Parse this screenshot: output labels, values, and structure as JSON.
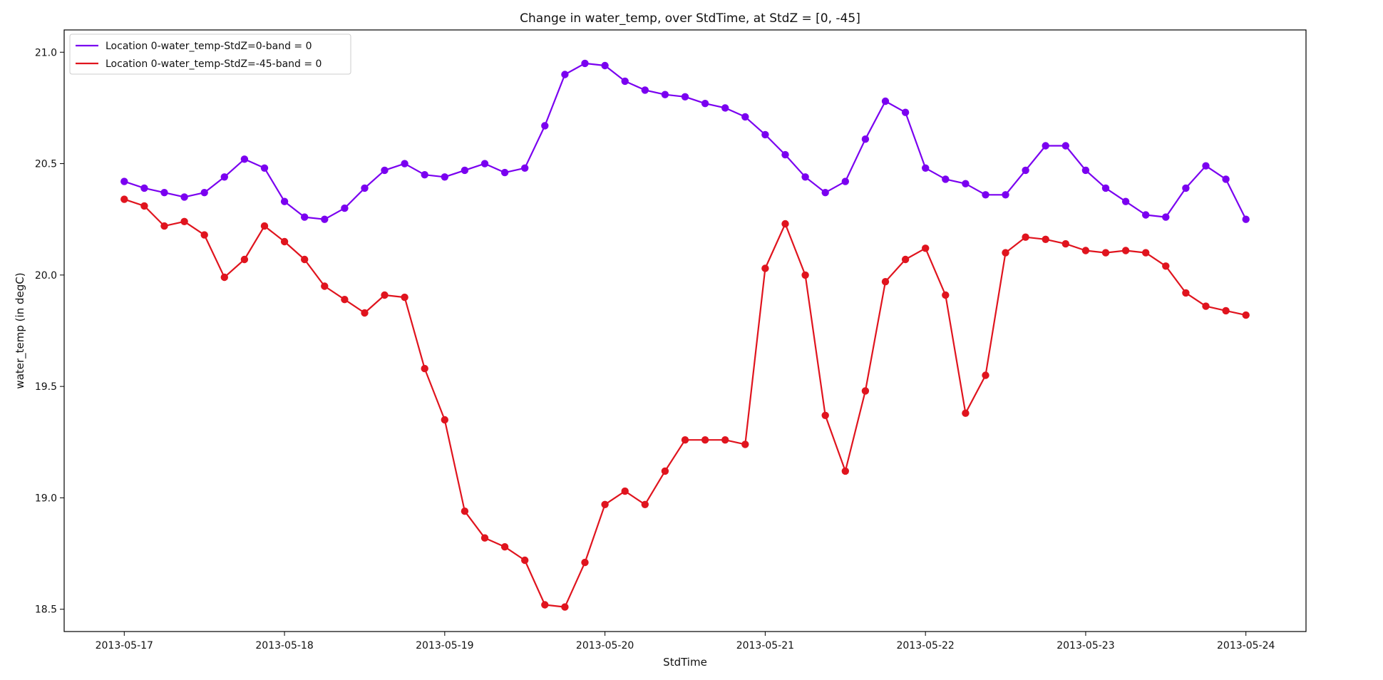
{
  "chart_data": {
    "type": "line",
    "title": "Change in water_temp, over StdTime, at StdZ =  [0, -45]",
    "xlabel": "StdTime",
    "ylabel": "water_temp (in degC)",
    "x_tick_labels": [
      "2013-05-17",
      "2013-05-18",
      "2013-05-19",
      "2013-05-20",
      "2013-05-21",
      "2013-05-22",
      "2013-05-23",
      "2013-05-24"
    ],
    "y_tick_labels": [
      "18.5",
      "19.0",
      "19.5",
      "20.0",
      "20.5",
      "21.0"
    ],
    "y_ticks": [
      18.5,
      19.0,
      19.5,
      20.0,
      20.5,
      21.0
    ],
    "xlim": [
      "2013-05-16 15:00",
      "2013-05-24 09:00"
    ],
    "ylim": [
      18.4,
      21.1
    ],
    "x_step_hours": 3,
    "x_start": "2013-05-17 00:00",
    "grid": false,
    "legend_position": "top-left",
    "series": [
      {
        "name": "Location 0-water_temp-StdZ=0-band = 0",
        "color": "#7a00f0",
        "values": [
          20.42,
          20.39,
          20.37,
          20.35,
          20.37,
          20.44,
          20.52,
          20.48,
          20.33,
          20.26,
          20.25,
          20.3,
          20.39,
          20.47,
          20.5,
          20.45,
          20.44,
          20.47,
          20.5,
          20.46,
          20.48,
          20.67,
          20.9,
          20.95,
          20.94,
          20.87,
          20.83,
          20.81,
          20.8,
          20.77,
          20.75,
          20.71,
          20.63,
          20.54,
          20.44,
          20.37,
          20.42,
          20.61,
          20.78,
          20.73,
          20.48,
          20.43,
          20.41,
          20.36,
          20.36,
          20.47,
          20.58,
          20.58,
          20.47,
          20.39,
          20.33,
          20.27,
          20.26,
          20.39,
          20.49,
          20.43,
          20.25
        ]
      },
      {
        "name": "Location 0-water_temp-StdZ=-45-band = 0",
        "color": "#e0141e",
        "values": [
          20.34,
          20.31,
          20.22,
          20.24,
          20.18,
          19.99,
          20.07,
          20.22,
          20.15,
          20.07,
          19.95,
          19.89,
          19.83,
          19.91,
          19.9,
          19.58,
          19.35,
          18.94,
          18.82,
          18.78,
          18.72,
          18.52,
          18.51,
          18.71,
          18.97,
          19.03,
          18.97,
          19.12,
          19.26,
          19.26,
          19.26,
          19.24,
          20.03,
          20.23,
          20.0,
          19.37,
          19.12,
          19.48,
          19.97,
          20.07,
          20.12,
          19.91,
          19.38,
          19.55,
          20.1,
          20.17,
          20.16,
          20.14,
          20.11,
          20.1,
          20.11,
          20.1,
          20.04,
          19.92,
          19.86,
          19.84,
          19.82
        ]
      }
    ]
  }
}
